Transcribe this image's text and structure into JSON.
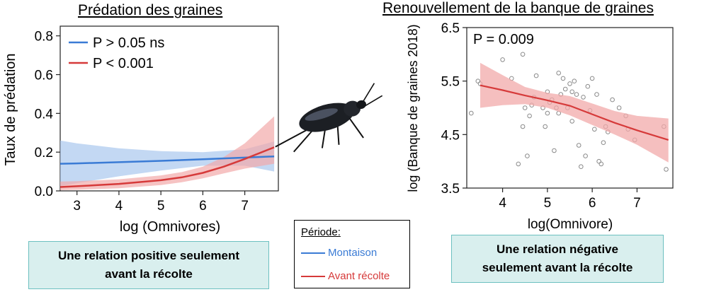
{
  "chart_data": [
    {
      "type": "line",
      "title": "Prédation des graines",
      "xlabel": "log (Omnivores)",
      "ylabel": "Taux de prédation",
      "xlim": [
        2.6,
        7.8
      ],
      "ylim": [
        0.0,
        0.85
      ],
      "xticks": [
        3,
        4,
        5,
        6,
        7
      ],
      "yticks": [
        0.0,
        0.2,
        0.4,
        0.6,
        0.8
      ],
      "ytick_labels": [
        "0.0",
        "0.2",
        "0.4",
        "0.6",
        "0.8"
      ],
      "legend": [
        "P > 0.05 ns",
        "P < 0.001"
      ],
      "series": [
        {
          "name": "Montaison",
          "color": "#3a7bd5",
          "band_color": "#a9c8ee",
          "x": [
            2.6,
            3.0,
            4.0,
            5.0,
            6.0,
            7.0,
            7.7
          ],
          "y": [
            0.14,
            0.142,
            0.148,
            0.155,
            0.163,
            0.172,
            0.178
          ],
          "lower": [
            0.025,
            0.04,
            0.075,
            0.105,
            0.13,
            0.13,
            0.1
          ],
          "upper": [
            0.26,
            0.245,
            0.22,
            0.205,
            0.2,
            0.215,
            0.255
          ]
        },
        {
          "name": "Avant récolte",
          "color": "#d63a3a",
          "band_color": "#f2aaaa",
          "x": [
            2.6,
            3.0,
            4.0,
            5.0,
            5.5,
            6.0,
            6.5,
            7.0,
            7.7
          ],
          "y": [
            0.02,
            0.024,
            0.036,
            0.055,
            0.07,
            0.093,
            0.125,
            0.165,
            0.225
          ],
          "lower": [
            0.004,
            0.006,
            0.014,
            0.03,
            0.045,
            0.065,
            0.09,
            0.115,
            0.14
          ],
          "upper": [
            0.048,
            0.05,
            0.06,
            0.08,
            0.097,
            0.125,
            0.175,
            0.245,
            0.385
          ]
        }
      ]
    },
    {
      "type": "scatter",
      "title": "Renouvellement de la banque de graines",
      "xlabel": "log(Omnivore)",
      "ylabel": "log (Banque de graines 2018)",
      "xlim": [
        3.2,
        7.8
      ],
      "ylim": [
        3.5,
        6.5
      ],
      "xticks": [
        4,
        5,
        6,
        7
      ],
      "yticks": [
        3.5,
        4.5,
        5.5,
        6.5
      ],
      "ytick_labels": [
        "3.5",
        "4.5",
        "5.5",
        "6.5"
      ],
      "annotation": "P = 0.009",
      "fit": {
        "color": "#d63a3a",
        "band_color": "#f2aaaa",
        "x": [
          3.5,
          4.0,
          4.5,
          5.0,
          5.5,
          6.0,
          6.5,
          7.0,
          7.7
        ],
        "y": [
          5.42,
          5.33,
          5.23,
          5.14,
          5.04,
          4.88,
          4.72,
          4.58,
          4.4
        ],
        "lower": [
          5.0,
          5.05,
          5.07,
          5.0,
          4.86,
          4.68,
          4.5,
          4.31,
          3.98
        ],
        "upper": [
          5.84,
          5.61,
          5.39,
          5.28,
          5.22,
          5.08,
          4.94,
          4.85,
          4.8
        ]
      },
      "points": [
        [
          3.3,
          4.9
        ],
        [
          3.45,
          5.5
        ],
        [
          3.5,
          5.45
        ],
        [
          4.0,
          5.9
        ],
        [
          4.2,
          5.55
        ],
        [
          4.35,
          3.95
        ],
        [
          4.45,
          6.0
        ],
        [
          4.5,
          5.0
        ],
        [
          4.55,
          4.1
        ],
        [
          4.6,
          4.85
        ],
        [
          4.65,
          5.05
        ],
        [
          4.7,
          5.2
        ],
        [
          4.75,
          5.6
        ],
        [
          4.9,
          5.0
        ],
        [
          4.95,
          4.65
        ],
        [
          5.0,
          4.9
        ],
        [
          5.0,
          5.3
        ],
        [
          5.05,
          5.1
        ],
        [
          5.1,
          5.15
        ],
        [
          5.15,
          4.2
        ],
        [
          5.2,
          5.0
        ],
        [
          5.25,
          5.65
        ],
        [
          5.3,
          5.25
        ],
        [
          5.35,
          5.55
        ],
        [
          5.4,
          5.35
        ],
        [
          5.45,
          5.0
        ],
        [
          5.5,
          5.45
        ],
        [
          5.55,
          4.75
        ],
        [
          5.6,
          5.5
        ],
        [
          5.65,
          5.25
        ],
        [
          5.7,
          4.3
        ],
        [
          5.75,
          3.9
        ],
        [
          5.8,
          5.2
        ],
        [
          5.85,
          4.1
        ],
        [
          5.9,
          5.4
        ],
        [
          5.95,
          4.95
        ],
        [
          6.0,
          5.55
        ],
        [
          6.05,
          4.6
        ],
        [
          6.1,
          5.25
        ],
        [
          6.15,
          4.0
        ],
        [
          6.2,
          3.95
        ],
        [
          6.25,
          4.35
        ],
        [
          6.35,
          4.55
        ],
        [
          6.45,
          5.15
        ],
        [
          6.6,
          5.0
        ],
        [
          6.75,
          4.85
        ],
        [
          6.8,
          4.6
        ],
        [
          6.95,
          4.4
        ],
        [
          7.6,
          4.65
        ],
        [
          7.65,
          3.85
        ],
        [
          4.45,
          4.65
        ],
        [
          5.25,
          4.9
        ],
        [
          5.55,
          5.3
        ],
        [
          6.3,
          4.65
        ]
      ]
    }
  ],
  "periode": {
    "title": "Période:",
    "montaison": "Montaison",
    "avant_recolte": "Avant récolte"
  },
  "messages": {
    "left": [
      "Une relation positive seulement",
      "avant la récolte"
    ],
    "right": [
      "Une relation négative",
      "seulement avant la récolte"
    ]
  },
  "colors": {
    "blue": "#3a7bd5",
    "red": "#d63a3a",
    "message_bg": "#d9efee"
  },
  "image": {
    "icon": "ground-beetle-icon"
  }
}
